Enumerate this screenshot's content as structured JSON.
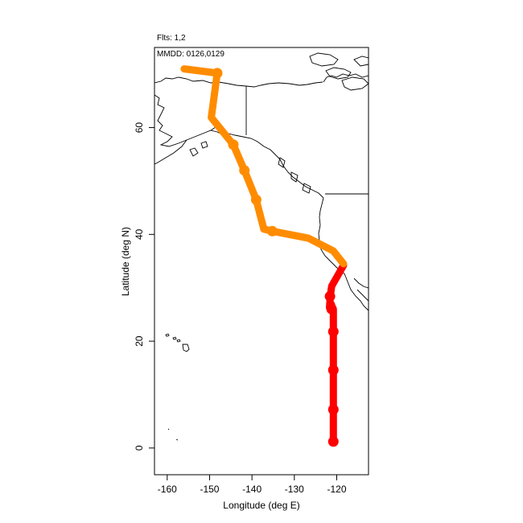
{
  "header": {
    "flights_text": "Flts: 1,2",
    "mmdd_text": "MMDD: 0126,0129"
  },
  "chart_data": {
    "type": "line",
    "xlabel": "Longitude (deg E)",
    "ylabel": "Latitude (deg N)",
    "xlim": [
      -163,
      -112.5
    ],
    "ylim": [
      -5,
      75
    ],
    "x_ticks": [
      -160,
      -150,
      -140,
      -130,
      -120
    ],
    "x_tick_labels": [
      "-160",
      "-150",
      "-140",
      "-130",
      "-120"
    ],
    "y_ticks": [
      0,
      20,
      40,
      60
    ],
    "y_tick_labels": [
      "0",
      "20",
      "40",
      "60"
    ],
    "grid": false,
    "legend": "none",
    "series": [
      {
        "color": "#ff0000",
        "points": [
          [
            -120.8,
            1.2
          ],
          [
            -120.8,
            7.2
          ],
          [
            -120.8,
            14.6
          ],
          [
            -120.8,
            21.8
          ],
          [
            -120.8,
            25.8
          ],
          [
            -121.3,
            27.0
          ],
          [
            -121.7,
            26.3
          ],
          [
            -121.5,
            28.6
          ],
          [
            -121.2,
            30.3
          ],
          [
            -118.4,
            34.2
          ]
        ],
        "markers": [
          [
            -120.8,
            1.2
          ],
          [
            -120.8,
            7.2
          ],
          [
            -120.8,
            14.6
          ],
          [
            -120.8,
            21.8
          ],
          [
            -121.2,
            26.0
          ],
          [
            -121.6,
            28.4
          ]
        ]
      },
      {
        "color": "#ff8c00",
        "points": [
          [
            -118.4,
            34.5
          ],
          [
            -120.8,
            36.9
          ],
          [
            -126.7,
            39.3
          ],
          [
            -135.2,
            40.6
          ],
          [
            -137.2,
            41.0
          ],
          [
            -139.0,
            46.5
          ],
          [
            -141.8,
            52.0
          ],
          [
            -144.4,
            56.8
          ],
          [
            -149.6,
            61.9
          ],
          [
            -148.2,
            70.2
          ],
          [
            -156.0,
            71.0
          ]
        ],
        "markers": [
          [
            -135.2,
            40.6
          ],
          [
            -139.0,
            46.5
          ],
          [
            -141.8,
            52.0
          ],
          [
            -144.4,
            56.8
          ],
          [
            -148.2,
            70.2
          ]
        ]
      }
    ]
  },
  "map": {
    "coast_color": "#000000"
  }
}
